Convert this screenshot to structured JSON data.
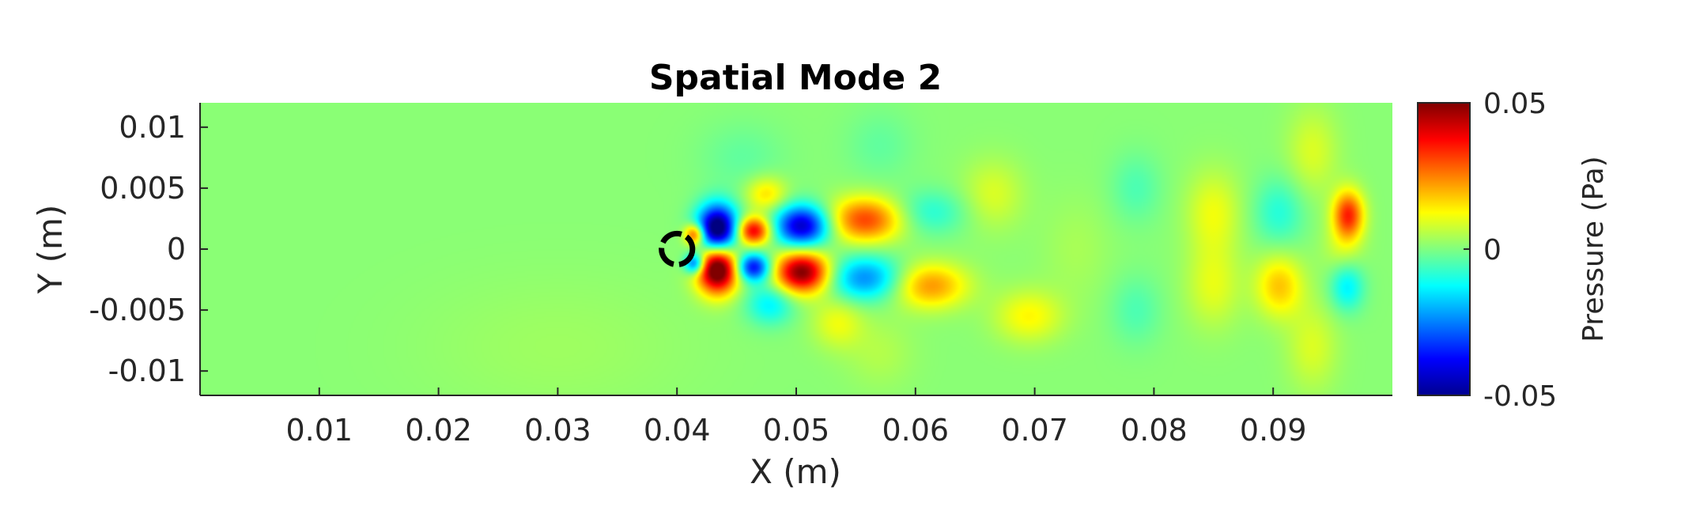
{
  "chart_data": {
    "type": "heatmap",
    "title": "Spatial Mode 2",
    "xlabel": "X (m)",
    "ylabel": "Y (m)",
    "xlim": [
      0,
      0.1
    ],
    "ylim": [
      -0.012,
      0.012
    ],
    "x_ticks": [
      {
        "value": 0.01,
        "label": "0.01"
      },
      {
        "value": 0.02,
        "label": "0.02"
      },
      {
        "value": 0.03,
        "label": "0.03"
      },
      {
        "value": 0.04,
        "label": "0.04"
      },
      {
        "value": 0.05,
        "label": "0.05"
      },
      {
        "value": 0.06,
        "label": "0.06"
      },
      {
        "value": 0.07,
        "label": "0.07"
      },
      {
        "value": 0.08,
        "label": "0.08"
      },
      {
        "value": 0.09,
        "label": "0.09"
      }
    ],
    "y_ticks": [
      {
        "value": 0.01,
        "label": "0.01"
      },
      {
        "value": 0.005,
        "label": "0.005"
      },
      {
        "value": 0,
        "label": "0"
      },
      {
        "value": -0.005,
        "label": "-0.005"
      },
      {
        "value": -0.01,
        "label": "-0.01"
      }
    ],
    "colorbar": {
      "label": "Pressure (Pa)",
      "colormap": "jet",
      "clim": [
        -0.05,
        0.05
      ],
      "ticks": [
        {
          "value": 0.05,
          "label": "0.05"
        },
        {
          "value": 0,
          "label": "0"
        },
        {
          "value": -0.05,
          "label": "-0.05"
        }
      ]
    },
    "background_value": 0.001,
    "obstacle": {
      "x": 0.04,
      "y": 0.0,
      "radius": 0.0013
    },
    "field_features": [
      {
        "x": 0.0434,
        "y": 0.0016,
        "sx": 0.0012,
        "sy": 0.0014,
        "value": -0.06
      },
      {
        "x": 0.0434,
        "y": -0.0016,
        "sx": 0.0012,
        "sy": 0.0014,
        "value": 0.06
      },
      {
        "x": 0.0415,
        "y": 0.0012,
        "sx": 0.0006,
        "sy": 0.0006,
        "value": 0.035
      },
      {
        "x": 0.0415,
        "y": -0.0012,
        "sx": 0.0006,
        "sy": 0.0006,
        "value": -0.035
      },
      {
        "x": 0.0464,
        "y": 0.0015,
        "sx": 0.001,
        "sy": 0.0008,
        "value": 0.04
      },
      {
        "x": 0.0464,
        "y": -0.0015,
        "sx": 0.001,
        "sy": 0.0008,
        "value": -0.04
      },
      {
        "x": 0.0505,
        "y": 0.0019,
        "sx": 0.0016,
        "sy": 0.0012,
        "value": -0.045
      },
      {
        "x": 0.0505,
        "y": -0.0019,
        "sx": 0.0016,
        "sy": 0.0012,
        "value": 0.05
      },
      {
        "x": 0.0558,
        "y": 0.0024,
        "sx": 0.0022,
        "sy": 0.0013,
        "value": 0.03
      },
      {
        "x": 0.0558,
        "y": -0.0024,
        "sx": 0.0022,
        "sy": 0.0013,
        "value": -0.025
      },
      {
        "x": 0.0612,
        "y": 0.003,
        "sx": 0.0022,
        "sy": 0.0013,
        "value": -0.01
      },
      {
        "x": 0.0612,
        "y": -0.003,
        "sx": 0.0022,
        "sy": 0.0013,
        "value": 0.022
      },
      {
        "x": 0.0475,
        "y": 0.0045,
        "sx": 0.0012,
        "sy": 0.001,
        "value": 0.015
      },
      {
        "x": 0.0478,
        "y": -0.0045,
        "sx": 0.0014,
        "sy": 0.0012,
        "value": -0.015
      },
      {
        "x": 0.0535,
        "y": -0.006,
        "sx": 0.0015,
        "sy": 0.0015,
        "value": 0.01
      },
      {
        "x": 0.0665,
        "y": 0.0045,
        "sx": 0.0018,
        "sy": 0.002,
        "value": 0.008
      },
      {
        "x": 0.0695,
        "y": -0.0055,
        "sx": 0.002,
        "sy": 0.0015,
        "value": 0.012
      },
      {
        "x": 0.0735,
        "y": 0.0,
        "sx": 0.002,
        "sy": 0.003,
        "value": 0.003
      },
      {
        "x": 0.0785,
        "y": 0.005,
        "sx": 0.0015,
        "sy": 0.002,
        "value": -0.006
      },
      {
        "x": 0.0785,
        "y": -0.005,
        "sx": 0.0015,
        "sy": 0.002,
        "value": -0.006
      },
      {
        "x": 0.085,
        "y": 0.003,
        "sx": 0.0016,
        "sy": 0.0024,
        "value": 0.01
      },
      {
        "x": 0.085,
        "y": -0.003,
        "sx": 0.0016,
        "sy": 0.0024,
        "value": 0.009
      },
      {
        "x": 0.0905,
        "y": 0.003,
        "sx": 0.0015,
        "sy": 0.002,
        "value": -0.01
      },
      {
        "x": 0.0905,
        "y": -0.003,
        "sx": 0.0014,
        "sy": 0.0018,
        "value": 0.017
      },
      {
        "x": 0.0933,
        "y": 0.008,
        "sx": 0.0015,
        "sy": 0.0025,
        "value": 0.008
      },
      {
        "x": 0.0933,
        "y": -0.008,
        "sx": 0.0015,
        "sy": 0.0025,
        "value": 0.008
      },
      {
        "x": 0.0963,
        "y": 0.0028,
        "sx": 0.0009,
        "sy": 0.0014,
        "value": 0.033
      },
      {
        "x": 0.0962,
        "y": -0.0031,
        "sx": 0.001,
        "sy": 0.0014,
        "value": -0.015
      },
      {
        "x": 0.0958,
        "y": 0.0,
        "sx": 0.0012,
        "sy": 0.0015,
        "value": 0.006
      },
      {
        "x": 0.0455,
        "y": 0.0075,
        "sx": 0.0025,
        "sy": 0.002,
        "value": -0.004
      },
      {
        "x": 0.057,
        "y": 0.0085,
        "sx": 0.002,
        "sy": 0.002,
        "value": -0.004
      },
      {
        "x": 0.057,
        "y": -0.0085,
        "sx": 0.002,
        "sy": 0.002,
        "value": 0.004
      },
      {
        "x": 0.03,
        "y": -0.008,
        "sx": 0.008,
        "sy": 0.004,
        "value": 0.002
      }
    ]
  }
}
